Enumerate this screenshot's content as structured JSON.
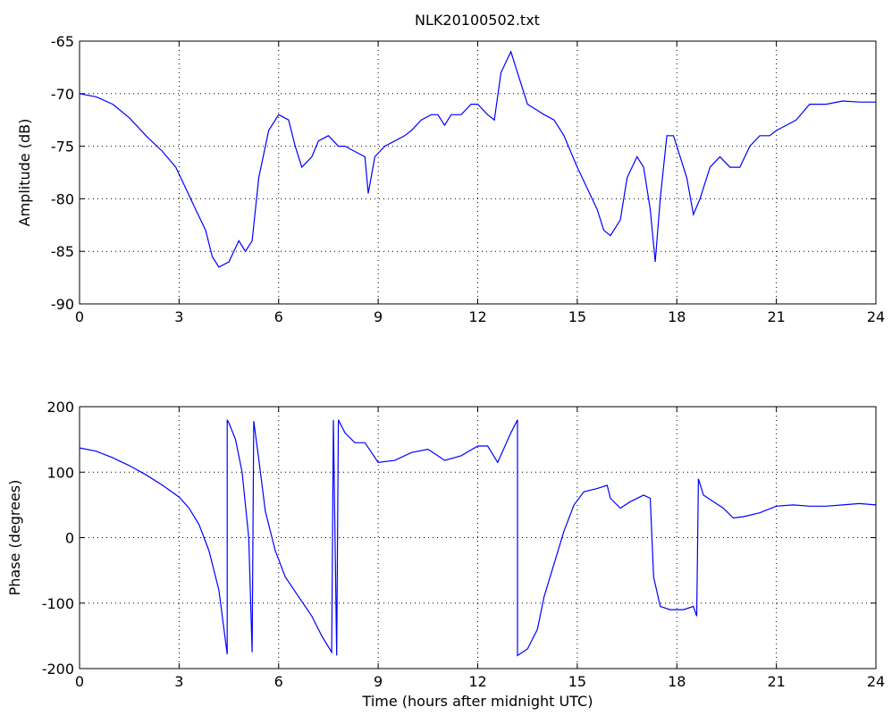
{
  "title": "NLK20100502.txt",
  "chart_data": [
    {
      "type": "line",
      "ylabel": "Amplitude (dB)",
      "xlim": [
        0,
        24
      ],
      "xticks": [
        0,
        3,
        6,
        9,
        12,
        15,
        18,
        21,
        24
      ],
      "ylim": [
        -90,
        -65
      ],
      "yticks": [
        -90,
        -85,
        -80,
        -75,
        -70,
        -65
      ],
      "grid": true,
      "x": [
        0,
        0.5,
        1,
        1.5,
        2,
        2.5,
        2.9,
        3.2,
        3.5,
        3.8,
        4.0,
        4.2,
        4.5,
        4.8,
        5.0,
        5.2,
        5.4,
        5.7,
        6.0,
        6.3,
        6.5,
        6.7,
        7.0,
        7.2,
        7.5,
        7.8,
        8.0,
        8.3,
        8.6,
        8.7,
        8.9,
        9.2,
        9.5,
        9.8,
        10.0,
        10.3,
        10.6,
        10.8,
        11.0,
        11.2,
        11.5,
        11.8,
        12.0,
        12.3,
        12.5,
        12.7,
        13.0,
        13.2,
        13.5,
        14.0,
        14.3,
        14.6,
        15.0,
        15.3,
        15.6,
        15.8,
        16.0,
        16.3,
        16.5,
        16.8,
        17.0,
        17.2,
        17.35,
        17.5,
        17.7,
        17.9,
        18.1,
        18.3,
        18.5,
        18.7,
        19.0,
        19.3,
        19.6,
        19.9,
        20.2,
        20.5,
        20.8,
        21.0,
        21.3,
        21.6,
        22.0,
        22.5,
        23.0,
        23.5,
        24
      ],
      "series": [
        {
          "color": "#0000ff",
          "values": [
            -70,
            -70.3,
            -71,
            -72.3,
            -74,
            -75.5,
            -77,
            -79,
            -81,
            -83,
            -85.5,
            -86.5,
            -86,
            -84,
            -85,
            -84,
            -78,
            -73.5,
            -72,
            -72.5,
            -75,
            -77,
            -76,
            -74.5,
            -74,
            -75,
            -75,
            -75.5,
            -76,
            -79.5,
            -76,
            -75,
            -74.5,
            -74,
            -73.5,
            -72.5,
            -72,
            -72,
            -73,
            -72,
            -72,
            -71,
            -71,
            -72,
            -72.5,
            -68,
            -66,
            -68,
            -71,
            -72,
            -72.5,
            -74,
            -77,
            -79,
            -81,
            -83,
            -83.5,
            -82,
            -78,
            -76,
            -77,
            -81,
            -86,
            -80,
            -74,
            -74,
            -76,
            -78,
            -81.5,
            -80,
            -77,
            -76,
            -77,
            -77,
            -75,
            -74,
            -74,
            -73.5,
            -73,
            -72.5,
            -71,
            -71,
            -70.7,
            -70.8,
            -70.8
          ]
        }
      ]
    },
    {
      "type": "line",
      "xlabel": "Time (hours after midnight UTC)",
      "ylabel": "Phase (degrees)",
      "xlim": [
        0,
        24
      ],
      "xticks": [
        0,
        3,
        6,
        9,
        12,
        15,
        18,
        21,
        24
      ],
      "ylim": [
        -200,
        200
      ],
      "yticks": [
        -200,
        -100,
        0,
        100,
        200
      ],
      "grid": true,
      "x": [
        0,
        0.5,
        1,
        1.5,
        2,
        2.5,
        3.0,
        3.3,
        3.6,
        3.9,
        4.2,
        4.45,
        4.45,
        4.5,
        4.7,
        4.9,
        5.1,
        5.2,
        5.25,
        5.4,
        5.6,
        5.9,
        6.2,
        6.6,
        7.0,
        7.3,
        7.6,
        7.65,
        7.75,
        7.8,
        8.0,
        8.3,
        8.6,
        9.0,
        9.5,
        10.0,
        10.5,
        10.8,
        11.0,
        11.5,
        12.0,
        12.3,
        12.6,
        13.0,
        13.2,
        13.2,
        13.5,
        13.8,
        14.0,
        14.3,
        14.6,
        14.9,
        15.2,
        15.6,
        15.9,
        16.0,
        16.3,
        16.6,
        17.0,
        17.2,
        17.3,
        17.5,
        17.8,
        18.2,
        18.5,
        18.6,
        18.65,
        18.8,
        19.1,
        19.4,
        19.7,
        20.0,
        20.5,
        21.0,
        21.5,
        22.0,
        22.5,
        23,
        23.5,
        24
      ],
      "series": [
        {
          "color": "#0000ff",
          "values": [
            137,
            132,
            122,
            110,
            96,
            80,
            62,
            45,
            20,
            -20,
            -80,
            -178,
            180,
            175,
            150,
            100,
            0,
            -175,
            178,
            120,
            40,
            -20,
            -60,
            -90,
            -120,
            -150,
            -175,
            180,
            -180,
            180,
            160,
            145,
            145,
            115,
            118,
            130,
            135,
            125,
            118,
            125,
            140,
            140,
            115,
            160,
            180,
            -180,
            -170,
            -140,
            -90,
            -40,
            10,
            50,
            70,
            75,
            80,
            60,
            45,
            55,
            65,
            60,
            -60,
            -105,
            -110,
            -110,
            -105,
            -120,
            90,
            65,
            55,
            45,
            30,
            32,
            38,
            48,
            50,
            48,
            48,
            50,
            52,
            50
          ]
        }
      ]
    }
  ]
}
